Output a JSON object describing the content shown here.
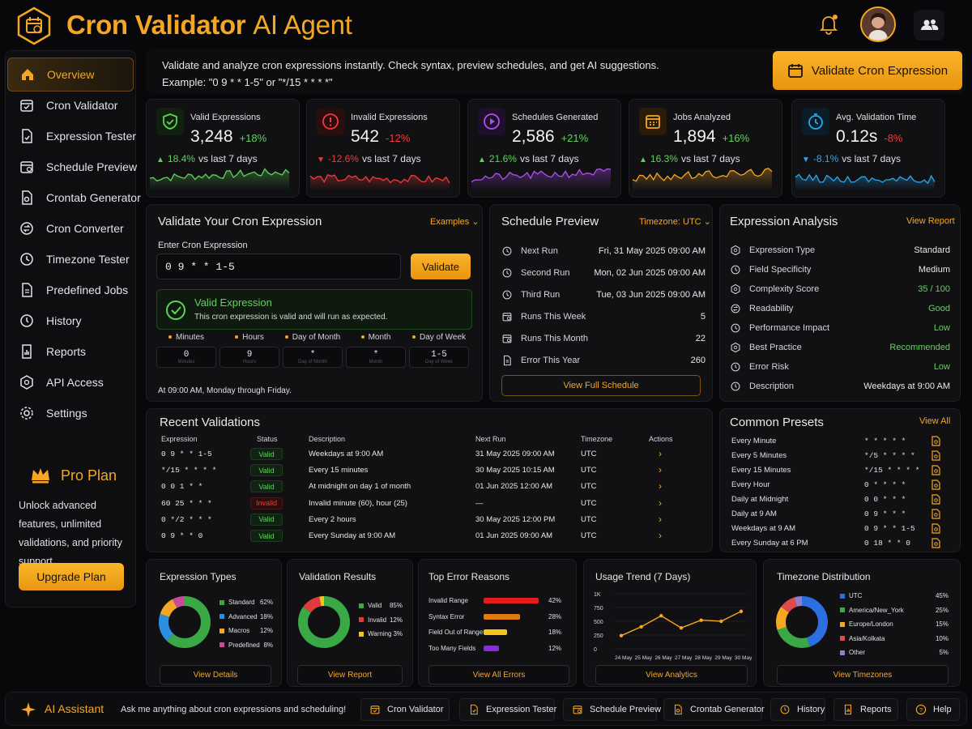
{
  "app": {
    "title": "Cron Validator",
    "title_suffix": "AI Agent"
  },
  "sidebar": {
    "items": [
      {
        "label": "Overview",
        "icon": "home-icon",
        "active": true
      },
      {
        "label": "Cron Validator",
        "icon": "calendar-check-icon"
      },
      {
        "label": "Expression Tester",
        "icon": "document-check-icon"
      },
      {
        "label": "Schedule Preview",
        "icon": "calendar-icon"
      },
      {
        "label": "Crontab Generator",
        "icon": "file-gear-icon"
      },
      {
        "label": "Cron Converter",
        "icon": "convert-icon"
      },
      {
        "label": "Timezone Tester",
        "icon": "clock-icon"
      },
      {
        "label": "Predefined Jobs",
        "icon": "jobs-icon"
      },
      {
        "label": "History",
        "icon": "history-icon"
      },
      {
        "label": "Reports",
        "icon": "report-icon"
      },
      {
        "label": "API Access",
        "icon": "api-icon"
      },
      {
        "label": "Settings",
        "icon": "gear-icon"
      }
    ],
    "pro": {
      "title": "Pro Plan",
      "desc": "Unlock advanced features, unlimited validations, and priority support.",
      "button": "Upgrade Plan"
    }
  },
  "intro": {
    "line1": "Validate and analyze cron expressions instantly. Check syntax, preview schedules, and get AI suggestions.",
    "line2": "Example: \"0 9 * * 1-5\" or \"*/15 * * * *\"",
    "cta": "Validate Cron Expression"
  },
  "stats": [
    {
      "label": "Valid Expressions",
      "value": "3,248",
      "delta": "+18%",
      "cmp_pct": "18.4%",
      "cmp_text": "vs last 7 days",
      "dir": "up",
      "color": "#5fd35a",
      "icon": "shield-check-icon"
    },
    {
      "label": "Invalid Expressions",
      "value": "542",
      "delta": "-12%",
      "cmp_pct": "-12.6%",
      "cmp_text": "vs last 7 days",
      "dir": "down",
      "color": "#ef3b3b",
      "icon": "alert-circle-icon"
    },
    {
      "label": "Schedules Generated",
      "value": "2,586",
      "delta": "+21%",
      "cmp_pct": "21.6%",
      "cmp_text": "vs last 7 days",
      "dir": "up",
      "color": "#b14ef0",
      "icon": "play-circle-icon"
    },
    {
      "label": "Jobs Analyzed",
      "value": "1,894",
      "delta": "+16%",
      "cmp_pct": "16.3%",
      "cmp_text": "vs last 7 days",
      "dir": "up",
      "color": "#f5a623",
      "icon": "calendar-grid-icon"
    },
    {
      "label": "Avg. Validation Time",
      "value": "0.12s",
      "delta": "-8%",
      "cmp_pct": "-8.1%",
      "cmp_text": "vs last 7 days",
      "dir": "down",
      "color": "#2ba8e8",
      "icon": "stopwatch-icon"
    }
  ],
  "validate": {
    "title": "Validate Your Cron Expression",
    "examples": "Examples",
    "input_label": "Enter Cron Expression",
    "input_value": "0 9 * * 1-5",
    "button": "Validate",
    "result_title": "Valid Expression",
    "result_desc": "This cron expression is valid and will run as expected.",
    "fields": [
      {
        "label": "Minutes",
        "value": "0",
        "sub": "Minutes"
      },
      {
        "label": "Hours",
        "value": "9",
        "sub": "Hours"
      },
      {
        "label": "Day of Month",
        "value": "*",
        "sub": "Day of Month"
      },
      {
        "label": "Month",
        "value": "*",
        "sub": "Month"
      },
      {
        "label": "Day of Week",
        "value": "1-5",
        "sub": "Day of Week"
      }
    ],
    "summary": "At 09:00 AM, Monday through Friday."
  },
  "schedule": {
    "title": "Schedule Preview",
    "timezone": "Timezone: UTC",
    "rows": [
      {
        "label": "Next Run",
        "value": "Fri, 31 May 2025 09:00 AM"
      },
      {
        "label": "Second Run",
        "value": "Mon, 02 Jun 2025 09:00 AM"
      },
      {
        "label": "Third Run",
        "value": "Tue, 03 Jun 2025 09:00 AM"
      },
      {
        "label": "Runs This Week",
        "value": "5"
      },
      {
        "label": "Runs This Month",
        "value": "22"
      },
      {
        "label": "Error This Year",
        "value": "260"
      }
    ],
    "button": "View Full Schedule"
  },
  "analysis": {
    "title": "Expression Analysis",
    "link": "View Report",
    "rows": [
      {
        "label": "Expression Type",
        "value": "Standard",
        "color": "#e8e8ea"
      },
      {
        "label": "Field Specificity",
        "value": "Medium",
        "color": "#e8e8ea"
      },
      {
        "label": "Complexity Score",
        "value": "35 / 100",
        "color": "#5fd35a"
      },
      {
        "label": "Readability",
        "value": "Good",
        "color": "#5fd35a"
      },
      {
        "label": "Performance Impact",
        "value": "Low",
        "color": "#5fd35a"
      },
      {
        "label": "Best Practice",
        "value": "Recommended",
        "color": "#5fd35a"
      },
      {
        "label": "Error Risk",
        "value": "Low",
        "color": "#5fd35a"
      },
      {
        "label": "Description",
        "value": "Weekdays at 9:00 AM",
        "color": "#e8e8ea"
      }
    ]
  },
  "recent": {
    "title": "Recent Validations",
    "headers": [
      "Expression",
      "Status",
      "Description",
      "Next Run",
      "Timezone",
      "Actions"
    ],
    "rows": [
      {
        "expr": "0 9 * * 1-5",
        "status": "Valid",
        "desc": "Weekdays at 9:00 AM",
        "next": "31 May 2025 09:00 AM",
        "tz": "UTC"
      },
      {
        "expr": "*/15 * * * *",
        "status": "Valid",
        "desc": "Every 15 minutes",
        "next": "30 May 2025 10:15 AM",
        "tz": "UTC"
      },
      {
        "expr": "0 0 1 * *",
        "status": "Valid",
        "desc": "At midnight on day 1 of month",
        "next": "01 Jun 2025 12:00 AM",
        "tz": "UTC"
      },
      {
        "expr": "60 25 * * *",
        "status": "Invalid",
        "desc": "Invalid minute (60), hour (25)",
        "next": "—",
        "tz": "UTC"
      },
      {
        "expr": "0 */2 * * *",
        "status": "Valid",
        "desc": "Every 2 hours",
        "next": "30 May 2025 12:00 PM",
        "tz": "UTC"
      },
      {
        "expr": "0 9 * * 0",
        "status": "Valid",
        "desc": "Every Sunday at 9:00 AM",
        "next": "01 Jun 2025 09:00 AM",
        "tz": "UTC"
      }
    ]
  },
  "presets": {
    "title": "Common Presets",
    "link": "View All",
    "rows": [
      {
        "name": "Every Minute",
        "expr": "* * * * *"
      },
      {
        "name": "Every 5 Minutes",
        "expr": "*/5 * * * *"
      },
      {
        "name": "Every 15 Minutes",
        "expr": "*/15 * * * *"
      },
      {
        "name": "Every Hour",
        "expr": "0 * * * *"
      },
      {
        "name": "Daily at Midnight",
        "expr": "0 0 * * *"
      },
      {
        "name": "Daily at 9 AM",
        "expr": "0 9 * * *"
      },
      {
        "name": "Weekdays at 9 AM",
        "expr": "0 9 * * 1-5"
      },
      {
        "name": "Every Sunday at 6 PM",
        "expr": "0 18 * * 0"
      }
    ]
  },
  "bottom": {
    "types": {
      "title": "Expression Types",
      "button": "View Details"
    },
    "results": {
      "title": "Validation Results",
      "button": "View Report"
    },
    "errors": {
      "title": "Top Error Reasons",
      "button": "View All Errors"
    },
    "usage": {
      "title": "Usage Trend (7 Days)",
      "button": "View Analytics"
    },
    "tz": {
      "title": "Timezone Distribution",
      "button": "View Timezones"
    }
  },
  "chart_data": [
    {
      "type": "pie",
      "title": "Expression Types",
      "categories": [
        "Standard",
        "Advanced",
        "Macros",
        "Predefined"
      ],
      "values": [
        62,
        18,
        12,
        8
      ],
      "labels": [
        "62%",
        "18%",
        "12%",
        "8%"
      ],
      "colors": [
        "#3aa844",
        "#2b8fe0",
        "#f5a623",
        "#c94b9b"
      ]
    },
    {
      "type": "pie",
      "title": "Validation Results",
      "categories": [
        "Valid",
        "Invalid",
        "Warning"
      ],
      "values": [
        85,
        12,
        3
      ],
      "labels": [
        "85%",
        "12%",
        "3%"
      ],
      "colors": [
        "#3aa844",
        "#e03a3a",
        "#f5c518"
      ]
    },
    {
      "type": "bar",
      "title": "Top Error Reasons",
      "categories": [
        "Invalid Range",
        "Syntax Error",
        "Field Out of Range",
        "Too Many Fields"
      ],
      "values": [
        42,
        28,
        18,
        12
      ],
      "labels": [
        "42%",
        "28%",
        "18%",
        "12%"
      ],
      "colors": [
        "#e51c1c",
        "#e07a12",
        "#f5c518",
        "#8a2be2"
      ]
    },
    {
      "type": "line",
      "title": "Usage Trend (7 Days)",
      "x": [
        "24 May",
        "25 May",
        "26 May",
        "27 May",
        "28 May",
        "29 May",
        "30 May"
      ],
      "y": [
        240,
        400,
        600,
        380,
        520,
        500,
        680
      ],
      "yticks": [
        "1K",
        "750",
        "500",
        "250",
        "0"
      ],
      "ylim": [
        0,
        1000
      ],
      "color": "#f5a623"
    },
    {
      "type": "pie",
      "title": "Timezone Distribution",
      "categories": [
        "UTC",
        "America/New_York",
        "Europe/London",
        "Asia/Kolkata",
        "Other"
      ],
      "values": [
        45,
        25,
        15,
        10,
        5
      ],
      "labels": [
        "45%",
        "25%",
        "15%",
        "10%",
        "5%"
      ],
      "colors": [
        "#2b6fe0",
        "#3aa844",
        "#f5a623",
        "#e04a4a",
        "#9a7ad0"
      ]
    }
  ],
  "footer": {
    "assistant": "AI Assistant",
    "prompt": "Ask me anything about cron expressions and scheduling!",
    "items": [
      "Cron Validator",
      "Expression Tester",
      "Schedule Preview",
      "Crontab Generator",
      "History",
      "Reports",
      "Help"
    ]
  }
}
